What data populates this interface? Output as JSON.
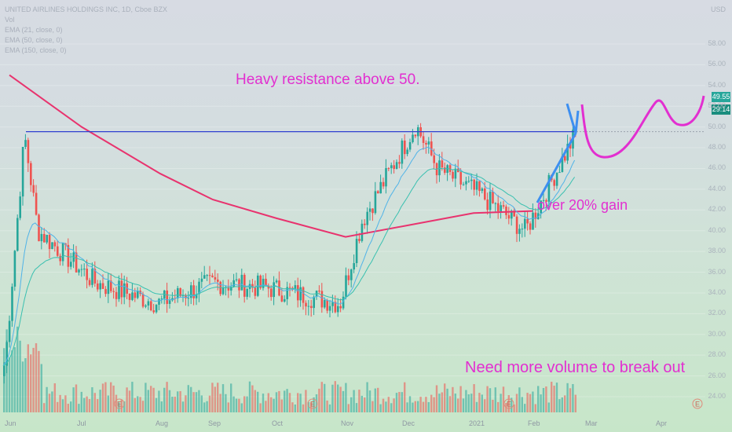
{
  "header": {
    "title": "UNITED AIRLINES HOLDINGS INC, 1D, Cboe BZX",
    "vol": "Vol",
    "ema21": "EMA (21, close, 0)",
    "ema50": "EMA (50, close, 0)",
    "ema150": "EMA (150, close, 0)",
    "currency": "USD"
  },
  "annotations": {
    "resistance": "Heavy resistance above 50.",
    "gain": "over 20% gain",
    "volume": "Need more volume to break out"
  },
  "price_tags": {
    "last": "49.55",
    "countdown": "29:14"
  },
  "earnings_marker": "E",
  "colors": {
    "up": "#26a69a",
    "down": "#ef5350",
    "ema150": "#e8336e",
    "ema_short": "#4fb3e8",
    "resistance": "#2f3fd0",
    "projection": "#e22fd0",
    "arrow": "#3d8ff0",
    "tag_last": "#26a69a",
    "tag_countdown": "#1a8d7e"
  },
  "chart_data": {
    "type": "candlestick",
    "title": "UNITED AIRLINES HOLDINGS INC, 1D, Cboe BZX",
    "y_axis_ticks": [
      24,
      26,
      28,
      30,
      32,
      34,
      36,
      38,
      40,
      42,
      44,
      46,
      48,
      50,
      52,
      54,
      56,
      58
    ],
    "ylim": [
      23,
      59
    ],
    "x_axis_labels": [
      "Jun",
      "Jul",
      "Aug",
      "Sep",
      "Oct",
      "Nov",
      "Dec",
      "2021",
      "Feb",
      "Mar",
      "Apr"
    ],
    "earnings_markers": [
      "Jul",
      "Oct",
      "Jan",
      "Apr"
    ],
    "key_points": [
      {
        "date": "Jun",
        "price": 27
      },
      {
        "date": "Jun",
        "price": 49.2
      },
      {
        "date": "Jun",
        "price": 40
      },
      {
        "date": "Jul",
        "price": 35
      },
      {
        "date": "Aug",
        "price": 33
      },
      {
        "date": "Sep",
        "price": 35
      },
      {
        "date": "Oct",
        "price": 34.5
      },
      {
        "date": "Nov",
        "price": 33
      },
      {
        "date": "Nov",
        "price": 41
      },
      {
        "date": "Dec",
        "price": 50.2
      },
      {
        "date": "Dec",
        "price": 46
      },
      {
        "date": "2021",
        "price": 43.5
      },
      {
        "date": "Feb",
        "price": 40
      },
      {
        "date": "Feb",
        "price": 49.55
      }
    ],
    "ema150_path": [
      {
        "date": "Jun",
        "price": 55
      },
      {
        "date": "Jul",
        "price": 50
      },
      {
        "date": "Aug",
        "price": 45.5
      },
      {
        "date": "Sep",
        "price": 43
      },
      {
        "date": "Oct",
        "price": 41.2
      },
      {
        "date": "Nov",
        "price": 39.4
      },
      {
        "date": "Dec",
        "price": 40.5
      },
      {
        "date": "2021",
        "price": 41.7
      },
      {
        "date": "Feb",
        "price": 41.9
      }
    ],
    "resistance_level": 49.55,
    "last_price": 49.55
  }
}
